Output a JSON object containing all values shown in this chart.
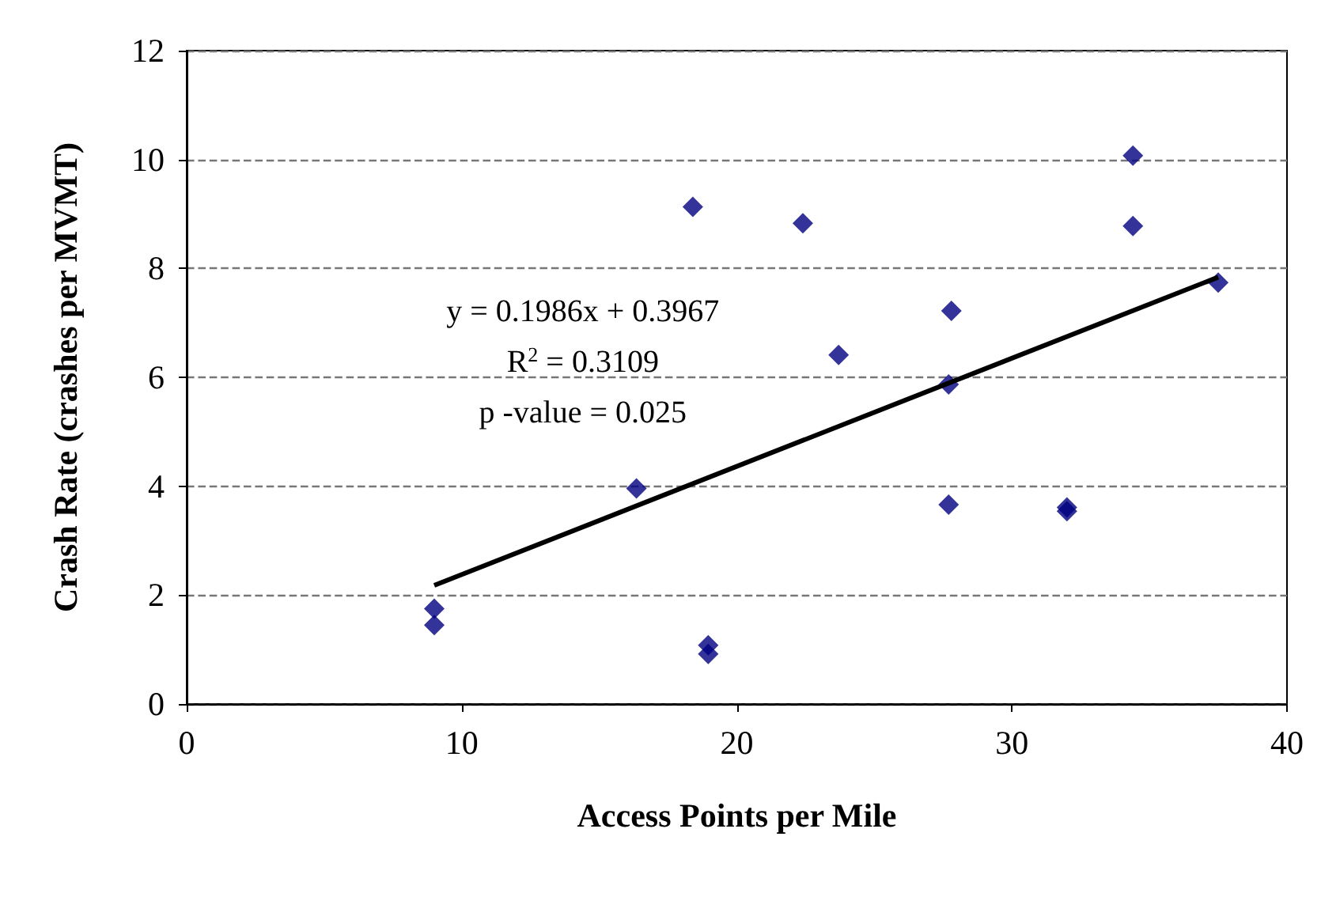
{
  "chart_data": {
    "type": "scatter",
    "xlabel": "Access Points per Mile",
    "ylabel": "Crash Rate (crashes per MVMT)",
    "marker": "diamond",
    "grid": "y",
    "xlim": [
      0,
      40
    ],
    "xticks": [
      0,
      10,
      20,
      30,
      40
    ],
    "ylim": [
      0,
      12
    ],
    "yticks": [
      0,
      2,
      4,
      6,
      8,
      10,
      12
    ],
    "annotations": [
      "y = 0.1986x + 0.3967",
      "R$^{2}$ = 0.3109",
      "p -value = 0.025"
    ],
    "series": [
      {
        "type": "scatter",
        "color": "#000080",
        "x": [
          9.0,
          9.0,
          16.35,
          18.4,
          18.96,
          18.96,
          22.4,
          23.7,
          27.8,
          27.7,
          27.7,
          32.0,
          32.0,
          34.4,
          34.4,
          37.5
        ],
        "values": [
          1.75,
          1.45,
          3.96,
          9.13,
          1.08,
          0.92,
          8.83,
          6.41,
          7.22,
          5.87,
          3.66,
          3.61,
          3.54,
          10.07,
          8.78,
          7.74
        ]
      },
      {
        "type": "line",
        "color": "#000000",
        "marker": "none",
        "line_style": "solid",
        "x": [
          9.0,
          37.5
        ],
        "values": [
          2.18,
          7.84
        ]
      }
    ]
  }
}
